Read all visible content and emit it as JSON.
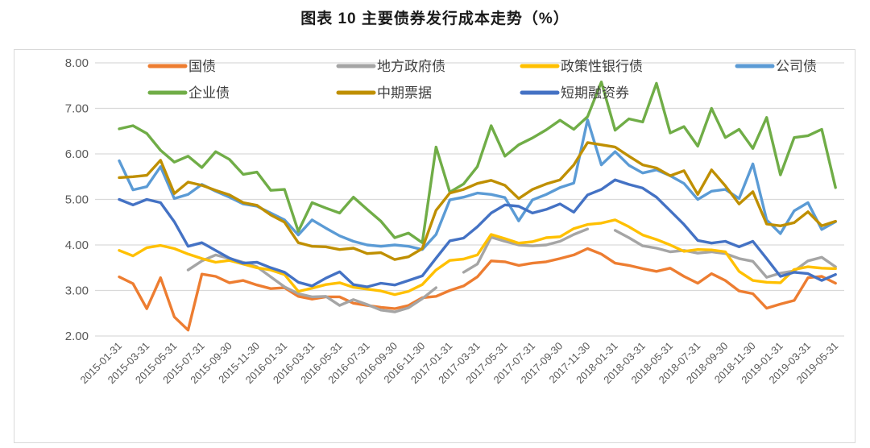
{
  "title": "图表 10 主要债券发行成本走势（%）",
  "chart_data": {
    "type": "line",
    "title": "图表 10 主要债券发行成本走势（%）",
    "ylim": [
      2.0,
      8.0
    ],
    "grid": "horizontal",
    "legend_position": "top",
    "y_tick_labels": [
      "2.00",
      "3.00",
      "4.00",
      "5.00",
      "6.00",
      "7.00",
      "8.00"
    ],
    "x_tick_labels": [
      "2015-01-31",
      "2015-03-31",
      "2015-05-31",
      "2015-07-31",
      "2015-09-30",
      "2015-11-30",
      "2016-01-31",
      "2016-03-31",
      "2016-05-31",
      "2016-07-31",
      "2016-09-30",
      "2016-11-30",
      "2017-01-31",
      "2017-03-31",
      "2017-05-31",
      "2017-07-31",
      "2017-09-30",
      "2017-11-30",
      "2018-01-31",
      "2018-03-31",
      "2018-05-31",
      "2018-07-31",
      "2018-09-30",
      "2018-11-30",
      "2019-01-31",
      "2019-03-31",
      "2019-05-31"
    ],
    "x": [
      "2015-01",
      "2015-02",
      "2015-03",
      "2015-04",
      "2015-05",
      "2015-06",
      "2015-07",
      "2015-08",
      "2015-09",
      "2015-10",
      "2015-11",
      "2015-12",
      "2016-01",
      "2016-02",
      "2016-03",
      "2016-04",
      "2016-05",
      "2016-06",
      "2016-07",
      "2016-08",
      "2016-09",
      "2016-10",
      "2016-11",
      "2016-12",
      "2017-01",
      "2017-02",
      "2017-03",
      "2017-04",
      "2017-05",
      "2017-06",
      "2017-07",
      "2017-08",
      "2017-09",
      "2017-10",
      "2017-11",
      "2017-12",
      "2018-01",
      "2018-02",
      "2018-03",
      "2018-04",
      "2018-05",
      "2018-06",
      "2018-07",
      "2018-08",
      "2018-09",
      "2018-10",
      "2018-11",
      "2018-12",
      "2019-01",
      "2019-02",
      "2019-03",
      "2019-04",
      "2019-05"
    ],
    "legend_rows": [
      [
        0,
        1,
        2,
        3
      ],
      [
        4,
        5,
        6
      ]
    ],
    "series": [
      {
        "id": "treasury-bond",
        "name": "国债",
        "color": "#ED7D31",
        "values": [
          3.3,
          3.15,
          2.6,
          3.28,
          2.42,
          2.13,
          3.36,
          3.31,
          3.17,
          3.22,
          3.12,
          3.04,
          3.06,
          2.87,
          2.81,
          2.86,
          2.86,
          2.72,
          2.67,
          2.63,
          2.6,
          2.67,
          2.84,
          2.87,
          3.0,
          3.1,
          3.3,
          3.65,
          3.63,
          3.55,
          3.6,
          3.63,
          3.7,
          3.78,
          3.92,
          3.8,
          3.6,
          3.55,
          3.48,
          3.42,
          3.49,
          3.31,
          3.16,
          3.37,
          3.22,
          2.99,
          2.93,
          2.61,
          2.7,
          2.78,
          3.28,
          3.31,
          3.16
        ]
      },
      {
        "id": "local-government-bond",
        "name": "地方政府债",
        "color": "#A5A5A5",
        "values": [
          null,
          null,
          null,
          null,
          null,
          3.45,
          3.65,
          3.78,
          3.7,
          3.62,
          3.52,
          3.3,
          3.08,
          2.93,
          2.86,
          2.87,
          2.67,
          2.8,
          2.69,
          2.57,
          2.53,
          2.62,
          2.82,
          3.06,
          null,
          3.4,
          3.58,
          4.17,
          4.08,
          4.0,
          3.98,
          4.0,
          4.08,
          4.23,
          4.35,
          null,
          4.32,
          4.16,
          3.98,
          3.93,
          3.85,
          3.88,
          3.82,
          3.85,
          3.81,
          3.7,
          3.64,
          3.29,
          3.38,
          3.43,
          3.65,
          3.73,
          3.52
        ]
      },
      {
        "id": "policy-bank-bond",
        "name": "政策性银行债",
        "color": "#FFC000",
        "values": [
          3.88,
          3.76,
          3.94,
          3.99,
          3.92,
          3.8,
          3.7,
          3.62,
          3.66,
          3.58,
          3.5,
          3.45,
          3.35,
          2.98,
          3.05,
          3.13,
          3.17,
          3.07,
          3.03,
          2.99,
          2.91,
          2.98,
          3.13,
          3.45,
          3.66,
          3.69,
          3.78,
          4.23,
          4.14,
          4.04,
          4.07,
          4.16,
          4.18,
          4.36,
          4.45,
          4.48,
          4.55,
          4.4,
          4.22,
          4.12,
          4.0,
          3.86,
          3.9,
          3.89,
          3.85,
          3.42,
          3.22,
          3.18,
          3.17,
          3.46,
          3.52,
          3.49,
          3.48
        ]
      },
      {
        "id": "corporate-bond",
        "name": "公司债",
        "color": "#5B9BD5",
        "values": [
          5.85,
          5.21,
          5.28,
          5.72,
          5.02,
          5.11,
          5.33,
          5.18,
          5.05,
          4.9,
          4.85,
          4.7,
          4.55,
          4.22,
          4.55,
          4.37,
          4.2,
          4.08,
          4.0,
          3.97,
          4.0,
          3.97,
          3.9,
          4.23,
          4.99,
          5.05,
          5.14,
          5.11,
          5.04,
          4.53,
          4.99,
          5.11,
          5.26,
          5.36,
          6.75,
          5.76,
          6.05,
          5.75,
          5.58,
          5.65,
          5.52,
          5.35,
          5.0,
          5.18,
          5.22,
          5.02,
          5.78,
          4.55,
          4.25,
          4.75,
          4.93,
          4.34,
          4.51
        ]
      },
      {
        "id": "enterprise-bond",
        "name": "企业债",
        "color": "#70AD47",
        "values": [
          6.55,
          6.62,
          6.45,
          6.08,
          5.82,
          5.95,
          5.7,
          6.05,
          5.88,
          5.55,
          5.6,
          5.2,
          5.22,
          4.3,
          4.93,
          4.81,
          4.7,
          5.05,
          4.78,
          4.52,
          4.16,
          4.26,
          4.05,
          6.15,
          5.16,
          5.34,
          5.72,
          6.62,
          5.95,
          6.2,
          6.35,
          6.53,
          6.74,
          6.54,
          6.82,
          7.58,
          6.52,
          6.77,
          6.7,
          7.55,
          6.46,
          6.6,
          6.17,
          7.0,
          6.36,
          6.54,
          6.12,
          6.8,
          5.54,
          6.36,
          6.4,
          6.54,
          5.26
        ]
      },
      {
        "id": "medium-term-note",
        "name": "中期票据",
        "color": "#BF8F00",
        "values": [
          5.48,
          5.5,
          5.53,
          5.86,
          5.13,
          5.38,
          5.31,
          5.2,
          5.1,
          4.93,
          4.87,
          4.66,
          4.5,
          4.05,
          3.97,
          3.96,
          3.9,
          3.93,
          3.81,
          3.83,
          3.68,
          3.74,
          3.92,
          4.76,
          5.14,
          5.22,
          5.35,
          5.42,
          5.31,
          5.02,
          5.22,
          5.34,
          5.43,
          5.76,
          6.25,
          6.2,
          6.15,
          5.95,
          5.76,
          5.69,
          5.52,
          5.63,
          5.11,
          5.65,
          5.3,
          4.9,
          5.17,
          4.46,
          4.42,
          4.49,
          4.73,
          4.42,
          4.52
        ]
      },
      {
        "id": "short-term-financing-bill",
        "name": "短期融资券",
        "color": "#4472C4",
        "values": [
          5.0,
          4.88,
          5.0,
          4.93,
          4.51,
          3.97,
          4.05,
          3.88,
          3.71,
          3.6,
          3.62,
          3.5,
          3.4,
          3.18,
          3.1,
          3.27,
          3.41,
          3.13,
          3.08,
          3.16,
          3.12,
          3.22,
          3.32,
          3.71,
          4.09,
          4.15,
          4.4,
          4.7,
          4.88,
          4.85,
          4.7,
          4.78,
          4.9,
          4.72,
          5.1,
          5.22,
          5.43,
          5.33,
          5.25,
          5.05,
          4.75,
          4.45,
          4.1,
          4.04,
          4.08,
          3.96,
          4.08,
          3.7,
          3.31,
          3.4,
          3.37,
          3.22,
          3.35
        ]
      }
    ]
  }
}
